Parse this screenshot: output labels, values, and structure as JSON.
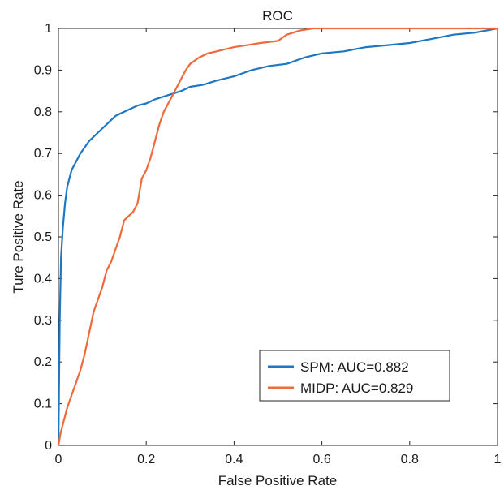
{
  "chart_data": {
    "type": "line",
    "title": "ROC",
    "xlabel": "False Positive Rate",
    "ylabel": "Ture Positive Rate",
    "xlim": [
      0,
      1
    ],
    "ylim": [
      0,
      1
    ],
    "x_ticks": [
      "0",
      "0.2",
      "0.4",
      "0.6",
      "0.8",
      "1"
    ],
    "y_ticks": [
      "0",
      "0.1",
      "0.2",
      "0.3",
      "0.4",
      "0.5",
      "0.6",
      "0.7",
      "0.8",
      "0.9",
      "1"
    ],
    "x_tick_values": [
      0,
      0.2,
      0.4,
      0.6,
      0.8,
      1
    ],
    "y_tick_values": [
      0,
      0.1,
      0.2,
      0.3,
      0.4,
      0.5,
      0.6,
      0.7,
      0.8,
      0.9,
      1
    ],
    "grid": false,
    "legend_position": "bottom-right",
    "series": [
      {
        "name": "SPM: AUC=0.882",
        "color": "#1f77c4",
        "x": [
          0,
          0.003,
          0.006,
          0.01,
          0.015,
          0.02,
          0.03,
          0.04,
          0.05,
          0.07,
          0.09,
          0.11,
          0.13,
          0.15,
          0.18,
          0.2,
          0.22,
          0.25,
          0.28,
          0.3,
          0.33,
          0.36,
          0.4,
          0.44,
          0.48,
          0.52,
          0.56,
          0.6,
          0.65,
          0.7,
          0.75,
          0.8,
          0.85,
          0.9,
          0.95,
          1.0
        ],
        "y": [
          0,
          0.3,
          0.45,
          0.52,
          0.58,
          0.62,
          0.66,
          0.68,
          0.7,
          0.73,
          0.75,
          0.77,
          0.79,
          0.8,
          0.815,
          0.82,
          0.83,
          0.84,
          0.85,
          0.86,
          0.865,
          0.875,
          0.885,
          0.9,
          0.91,
          0.915,
          0.93,
          0.94,
          0.945,
          0.955,
          0.96,
          0.965,
          0.975,
          0.985,
          0.99,
          1.0
        ]
      },
      {
        "name": "MIDP: AUC=0.829",
        "color": "#ee6a3a",
        "x": [
          0,
          0.005,
          0.01,
          0.02,
          0.03,
          0.04,
          0.05,
          0.06,
          0.07,
          0.08,
          0.09,
          0.1,
          0.11,
          0.12,
          0.13,
          0.14,
          0.15,
          0.16,
          0.17,
          0.18,
          0.19,
          0.2,
          0.21,
          0.22,
          0.23,
          0.24,
          0.25,
          0.26,
          0.27,
          0.28,
          0.29,
          0.3,
          0.32,
          0.34,
          0.36,
          0.38,
          0.4,
          0.43,
          0.46,
          0.5,
          0.52,
          0.55,
          0.58,
          0.6,
          0.65,
          0.7,
          0.8,
          0.9,
          1.0
        ],
        "y": [
          0,
          0.03,
          0.05,
          0.09,
          0.12,
          0.15,
          0.18,
          0.22,
          0.27,
          0.32,
          0.35,
          0.38,
          0.42,
          0.44,
          0.47,
          0.5,
          0.54,
          0.55,
          0.56,
          0.58,
          0.64,
          0.66,
          0.69,
          0.73,
          0.77,
          0.8,
          0.82,
          0.84,
          0.86,
          0.88,
          0.9,
          0.915,
          0.93,
          0.94,
          0.945,
          0.95,
          0.955,
          0.96,
          0.965,
          0.97,
          0.985,
          0.995,
          1.0,
          1.0,
          1.0,
          1.0,
          1.0,
          1.0,
          1.0
        ]
      }
    ]
  }
}
